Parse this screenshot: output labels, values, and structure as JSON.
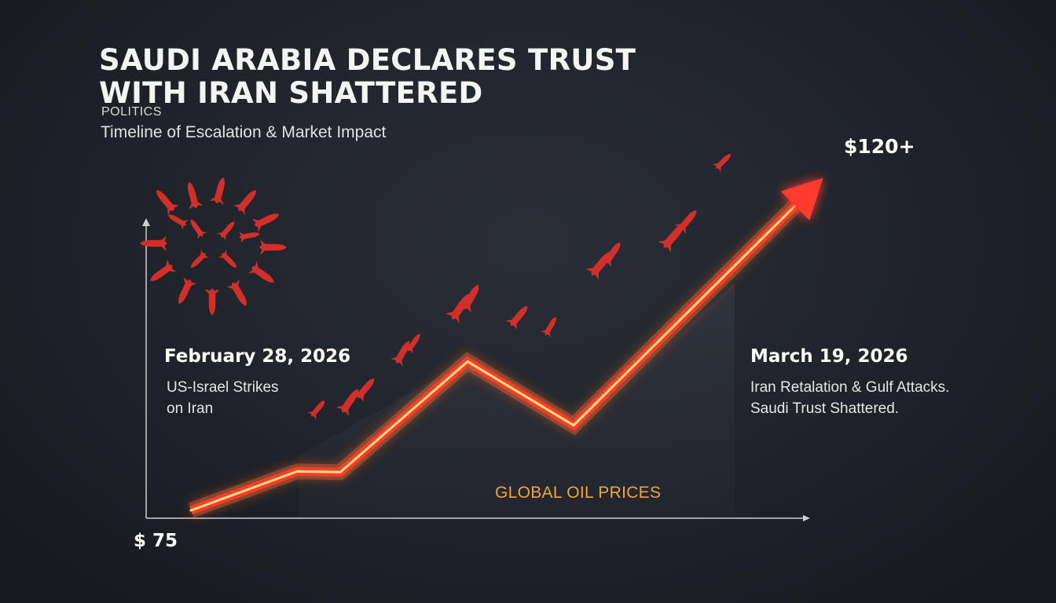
{
  "header": {
    "title": "SAUDI ARABIA DECLARES TRUST WITH IRAN SHATTERED",
    "category": "POLITICS",
    "subtitle": "Timeline of Escalation & Market Impact"
  },
  "events": [
    {
      "date": "February 28, 2026",
      "description": "US-Israel Strikes\non Iran"
    },
    {
      "date": "March 19, 2026",
      "description": "Iran Retalation & Gulf Attacks.\n Saudi Trust Shattered."
    }
  ],
  "colors": {
    "line": "#ff3b2f",
    "line_glow": "#ff6a2a",
    "line_core": "#ffe27a",
    "missile": "#d32f2a",
    "series_label": "#f0a341",
    "axis": "#d0d0d0"
  },
  "chart_data": {
    "type": "line",
    "series": [
      {
        "name": "GLOBAL OIL PRICES",
        "values": [
          75,
          80.5,
          80.4,
          96,
          87,
          118
        ]
      }
    ],
    "ymin_label": "$ 75",
    "ymax_label": "$120+",
    "ylim": [
      75,
      120
    ],
    "grid": false,
    "arrow_at_end": true
  }
}
